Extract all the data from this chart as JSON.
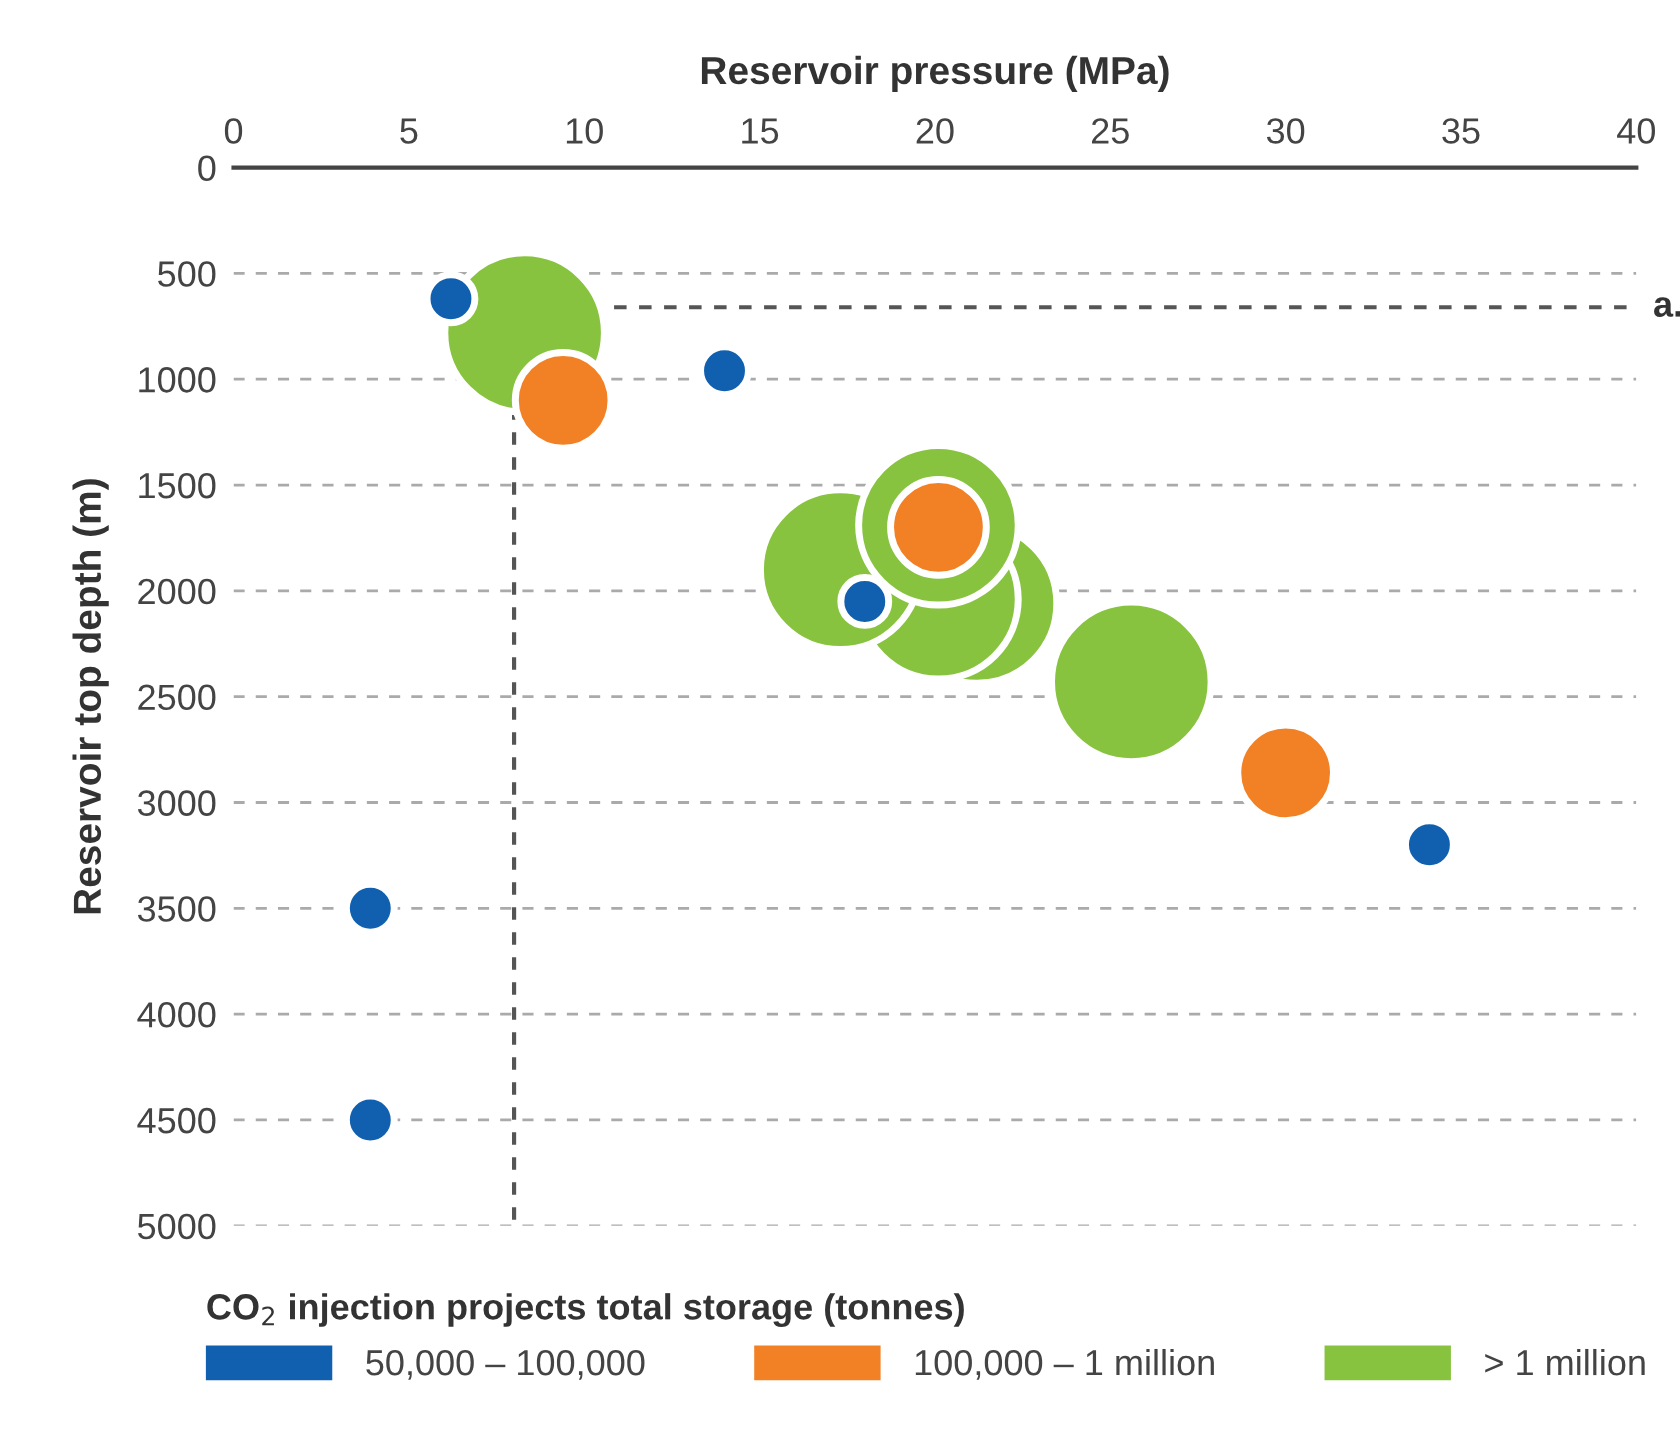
{
  "chart_data": {
    "type": "bubble",
    "xlabel": "Reservoir pressure (MPa)",
    "ylabel": "Reservoir top depth (m)",
    "legend_title": "CO$_{2}$ injection projects total storage (tonnes)",
    "xlim": [
      0,
      40
    ],
    "xticks": [
      0,
      5,
      10,
      15,
      20,
      25,
      30,
      35,
      40
    ],
    "ylim": [
      5000,
      0
    ],
    "yticks": [
      0,
      500,
      1000,
      1500,
      2000,
      2500,
      3000,
      3500,
      4000,
      4500,
      5000
    ],
    "grid": "y",
    "legend": "bottom",
    "ref_lines": [
      {
        "axis": "x",
        "value": 8,
        "label": null,
        "color": "#555555",
        "line_style": "dashed"
      },
      {
        "axis": "y",
        "value": 660,
        "label": "a.",
        "color": "#555555",
        "line_style": "dashed"
      }
    ],
    "series": [
      {
        "name": "50,000 – 100,000",
        "color": "#1160b0",
        "x": [
          6.2,
          14.0,
          18.0,
          34.1,
          3.9,
          3.9
        ],
        "values": [
          620,
          960,
          2050,
          3200,
          3500,
          4500
        ],
        "sizes": [
          0.09,
          0.09,
          0.09,
          0.09,
          0.09,
          0.09
        ]
      },
      {
        "name": "100,000 – 1 million",
        "color": "#f28126",
        "x": [
          9.4,
          20.1,
          30.0
        ],
        "values": [
          1100,
          1700,
          2860
        ],
        "sizes": [
          0.36,
          0.36,
          0.36
        ]
      },
      {
        "name": "> 1 million",
        "color": "#88c340",
        "x": [
          8.3,
          21.2,
          20.1,
          17.3,
          20.1,
          25.6
        ],
        "values": [
          780,
          2060,
          2040,
          1900,
          1690,
          2430
        ],
        "sizes": [
          1,
          1,
          1,
          1,
          1,
          1
        ]
      }
    ]
  }
}
